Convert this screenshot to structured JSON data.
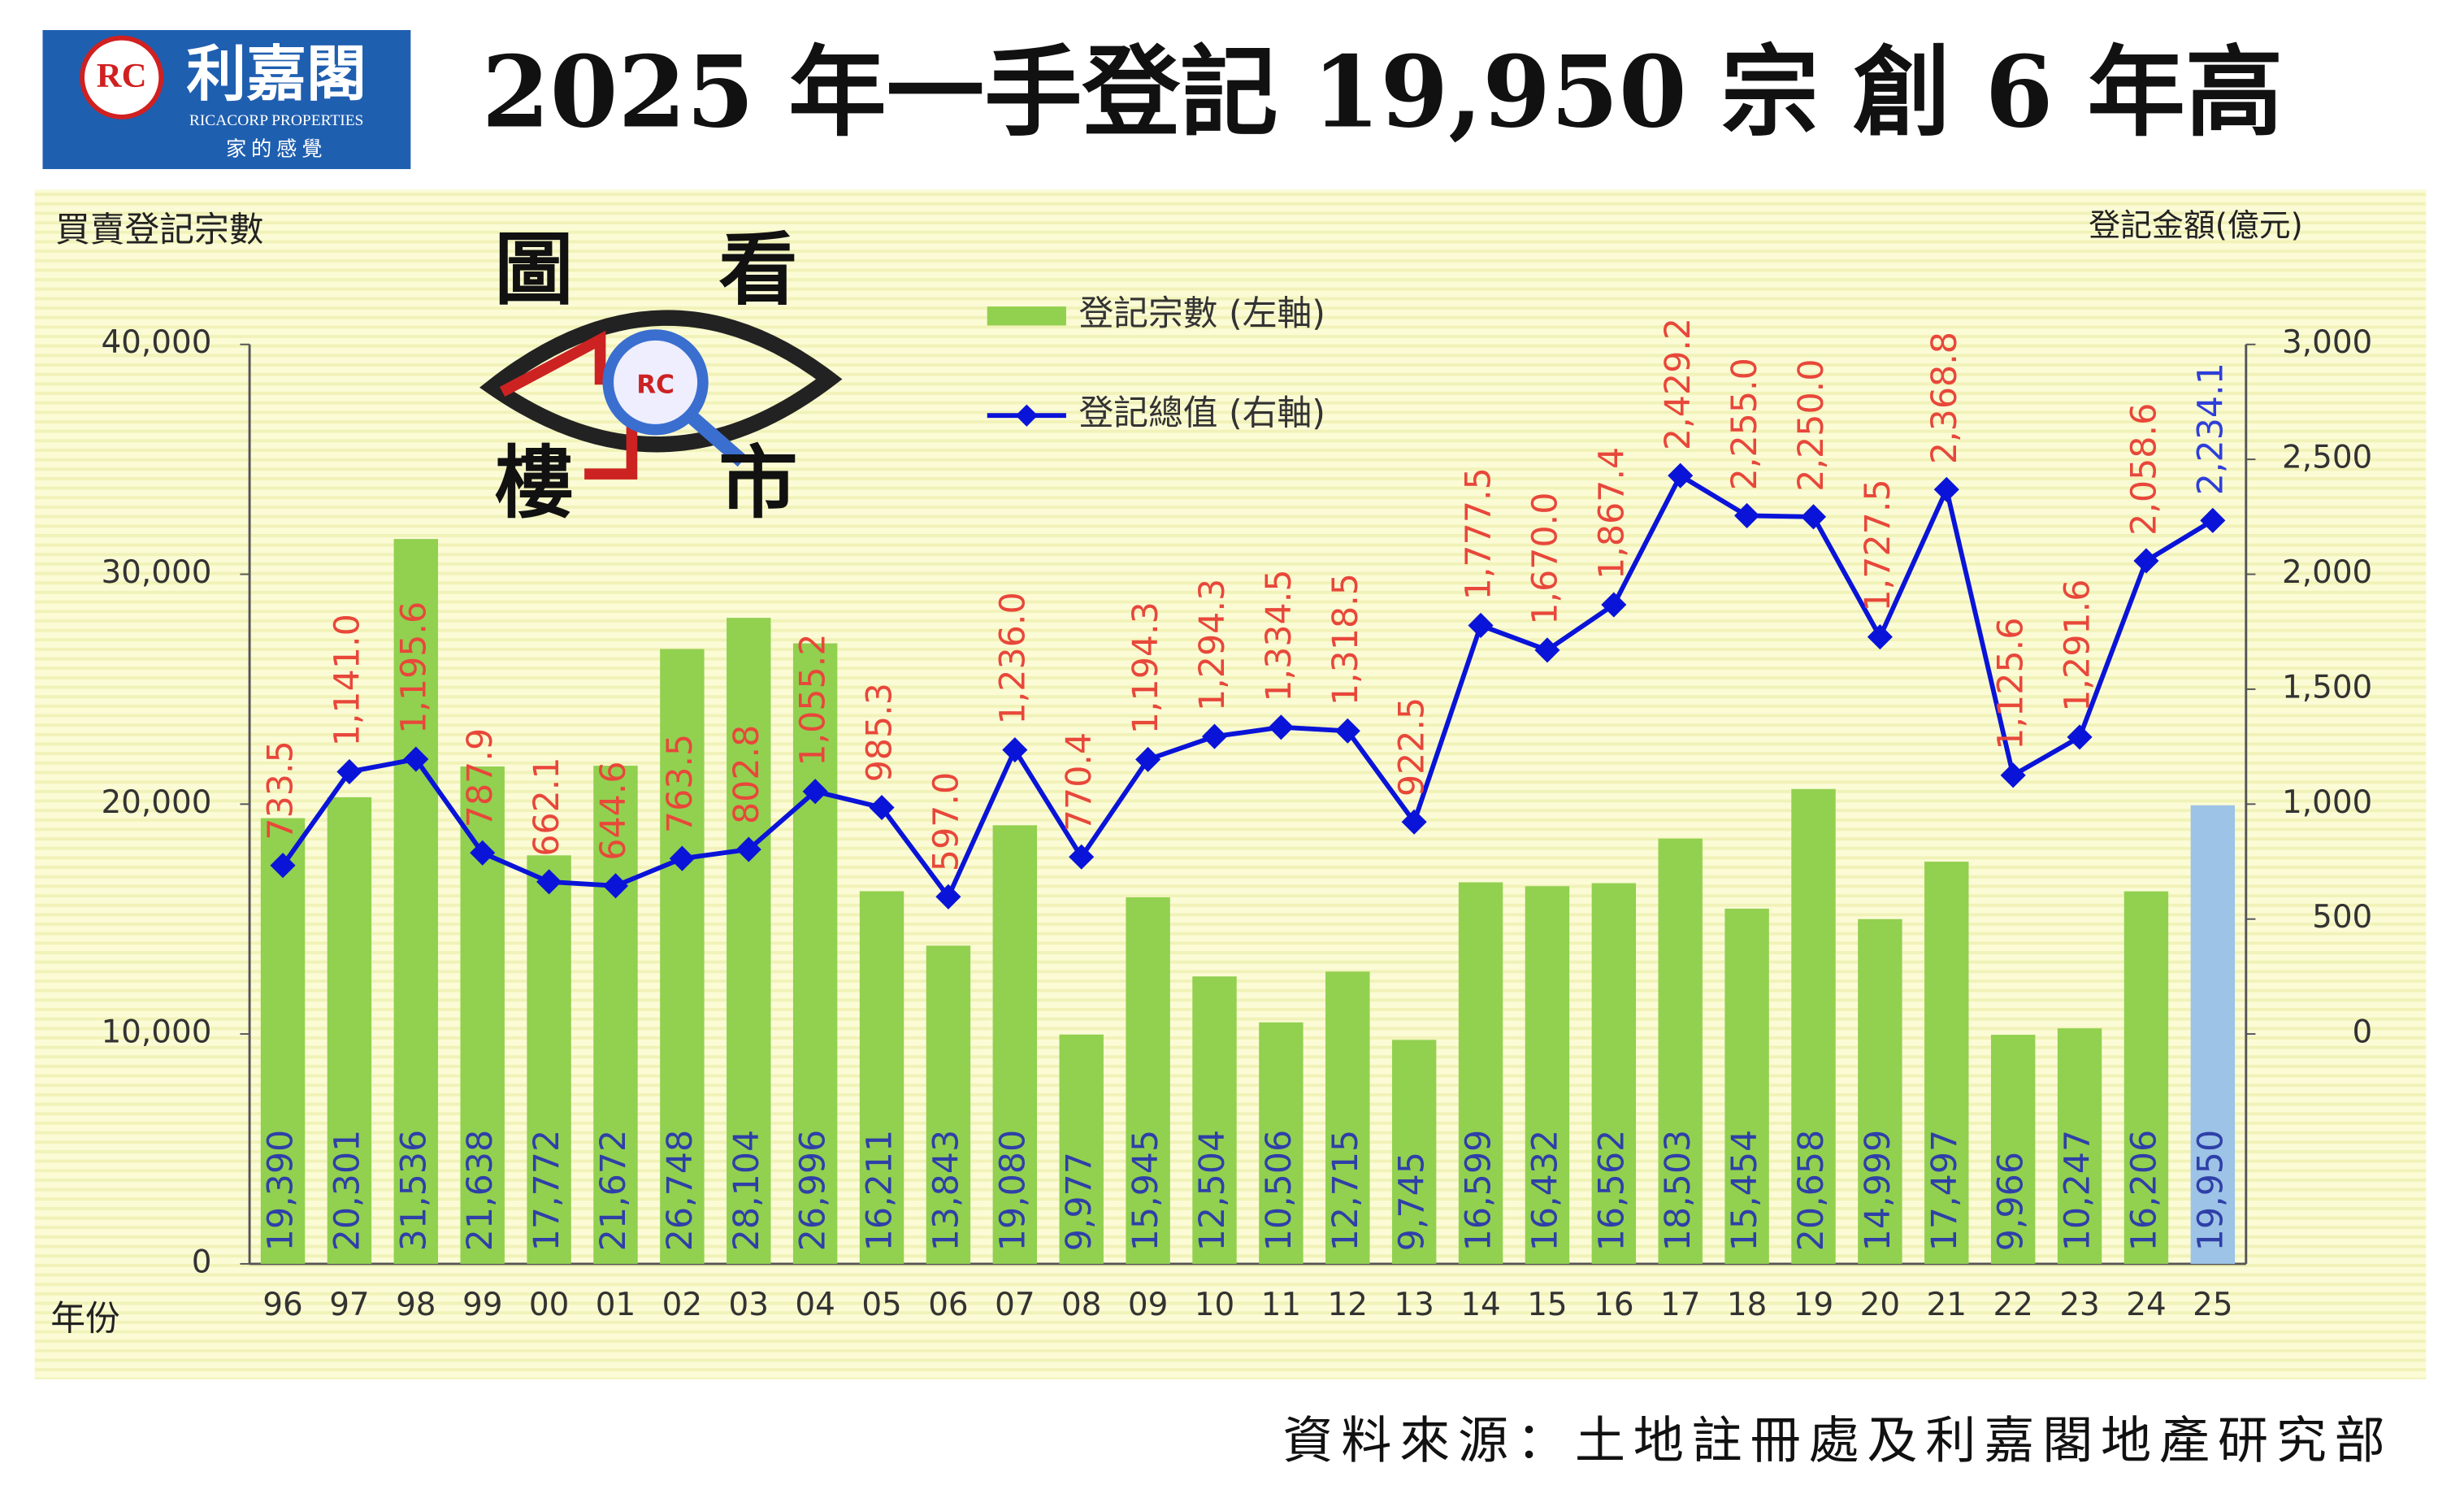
{
  "header": {
    "logo_name": "利嘉閣",
    "logo_en": "RICACORP PROPERTIES",
    "logo_slogan": "家的感覺",
    "logo_mark": "RC"
  },
  "watermark": {
    "chars": [
      "圖",
      "看",
      "樓",
      "市"
    ],
    "mark": "RC"
  },
  "source": "資料來源：土地註冊處及利嘉閣地產研究部",
  "chart_data": {
    "type": "bar-line",
    "title": "2025 年一手登記 19,950 宗  創 6 年高",
    "y_label": "買賣登記宗數",
    "y2_label": "登記金額(億元)",
    "x_label": "年份",
    "categories": [
      "96",
      "97",
      "98",
      "99",
      "00",
      "01",
      "02",
      "03",
      "04",
      "05",
      "06",
      "07",
      "08",
      "09",
      "10",
      "11",
      "12",
      "13",
      "14",
      "15",
      "16",
      "17",
      "18",
      "19",
      "20",
      "21",
      "22",
      "23",
      "24",
      "25"
    ],
    "series": [
      {
        "name": "登記宗數 (左軸)",
        "type": "bar",
        "color": "#92d050",
        "colors": [
          "#92d050",
          "#92d050",
          "#92d050",
          "#92d050",
          "#92d050",
          "#92d050",
          "#92d050",
          "#92d050",
          "#92d050",
          "#92d050",
          "#92d050",
          "#92d050",
          "#92d050",
          "#92d050",
          "#92d050",
          "#92d050",
          "#92d050",
          "#92d050",
          "#92d050",
          "#92d050",
          "#92d050",
          "#92d050",
          "#92d050",
          "#92d050",
          "#92d050",
          "#92d050",
          "#92d050",
          "#92d050",
          "#92d050",
          "#9dc3e6"
        ],
        "label_color": "#2f3fa8",
        "values": [
          19390,
          20301,
          31536,
          21638,
          17772,
          21672,
          26748,
          28104,
          26996,
          16211,
          13843,
          19080,
          9977,
          15945,
          12504,
          10506,
          12715,
          9745,
          16599,
          16432,
          16562,
          18503,
          15454,
          20658,
          14999,
          17497,
          9966,
          10247,
          16206,
          19950
        ],
        "value_labels": [
          "19,390",
          "20,301",
          "31,536",
          "21,638",
          "17,772",
          "21,672",
          "26,748",
          "28,104",
          "26,996",
          "16,211",
          "13,843",
          "19,080",
          "9,977",
          "15,945",
          "12,504",
          "10,506",
          "12,715",
          "9,745",
          "16,599",
          "16,432",
          "16,562",
          "18,503",
          "15,454",
          "20,658",
          "14,999",
          "17,497",
          "9,966",
          "10,247",
          "16,206",
          "19,950"
        ]
      },
      {
        "name": "登記總值 (右軸)",
        "type": "line",
        "axis": "y2",
        "color": "#0a14d8",
        "label_colors": [
          "#e8473a",
          "#e8473a",
          "#e8473a",
          "#e8473a",
          "#e8473a",
          "#e8473a",
          "#e8473a",
          "#e8473a",
          "#e8473a",
          "#e8473a",
          "#e8473a",
          "#e8473a",
          "#e8473a",
          "#e8473a",
          "#e8473a",
          "#e8473a",
          "#e8473a",
          "#e8473a",
          "#e8473a",
          "#e8473a",
          "#e8473a",
          "#e8473a",
          "#e8473a",
          "#e8473a",
          "#e8473a",
          "#e8473a",
          "#e8473a",
          "#e8473a",
          "#e8473a",
          "#2f3fd8"
        ],
        "values": [
          733.5,
          1141.0,
          1195.6,
          787.9,
          662.1,
          644.6,
          763.5,
          802.8,
          1055.2,
          985.3,
          597.0,
          1236.0,
          770.4,
          1194.3,
          1294.3,
          1334.5,
          1318.5,
          922.5,
          1777.5,
          1670.0,
          1867.4,
          2429.2,
          2255.0,
          2250.0,
          1727.5,
          2368.8,
          1125.6,
          1291.6,
          2058.6,
          2234.1
        ],
        "value_labels": [
          "733.5",
          "1,141.0",
          "1,195.6",
          "787.9",
          "662.1",
          "644.6",
          "763.5",
          "802.8",
          "1,055.2",
          "985.3",
          "597.0",
          "1,236.0",
          "770.4",
          "1,194.3",
          "1,294.3",
          "1,334.5",
          "1,318.5",
          "922.5",
          "1,777.5",
          "1,670.0",
          "1,867.4",
          "2,429.2",
          "2,255.0",
          "2,250.0",
          "1,727.5",
          "2,368.8",
          "1,125.6",
          "1,291.6",
          "2,058.6",
          "2,234.1"
        ]
      }
    ],
    "ylim": [
      0,
      40000
    ],
    "yticks": [
      0,
      {
        "value": 10000,
        "label": "10,000"
      },
      {
        "value": 20000,
        "label": "20,000"
      },
      {
        "value": 30000,
        "label": "30,000"
      },
      {
        "value": 40000,
        "label": "40,000"
      }
    ],
    "y2lim": [
      -1000,
      3000
    ],
    "y2ticks": [
      0,
      500,
      {
        "value": 1000,
        "label": "1,000"
      },
      {
        "value": 1500,
        "label": "1,500"
      },
      {
        "value": 2000,
        "label": "2,000"
      },
      {
        "value": 2500,
        "label": "2,500"
      },
      {
        "value": 3000,
        "label": "3,000"
      }
    ],
    "grid": false,
    "legend": "top-center"
  }
}
